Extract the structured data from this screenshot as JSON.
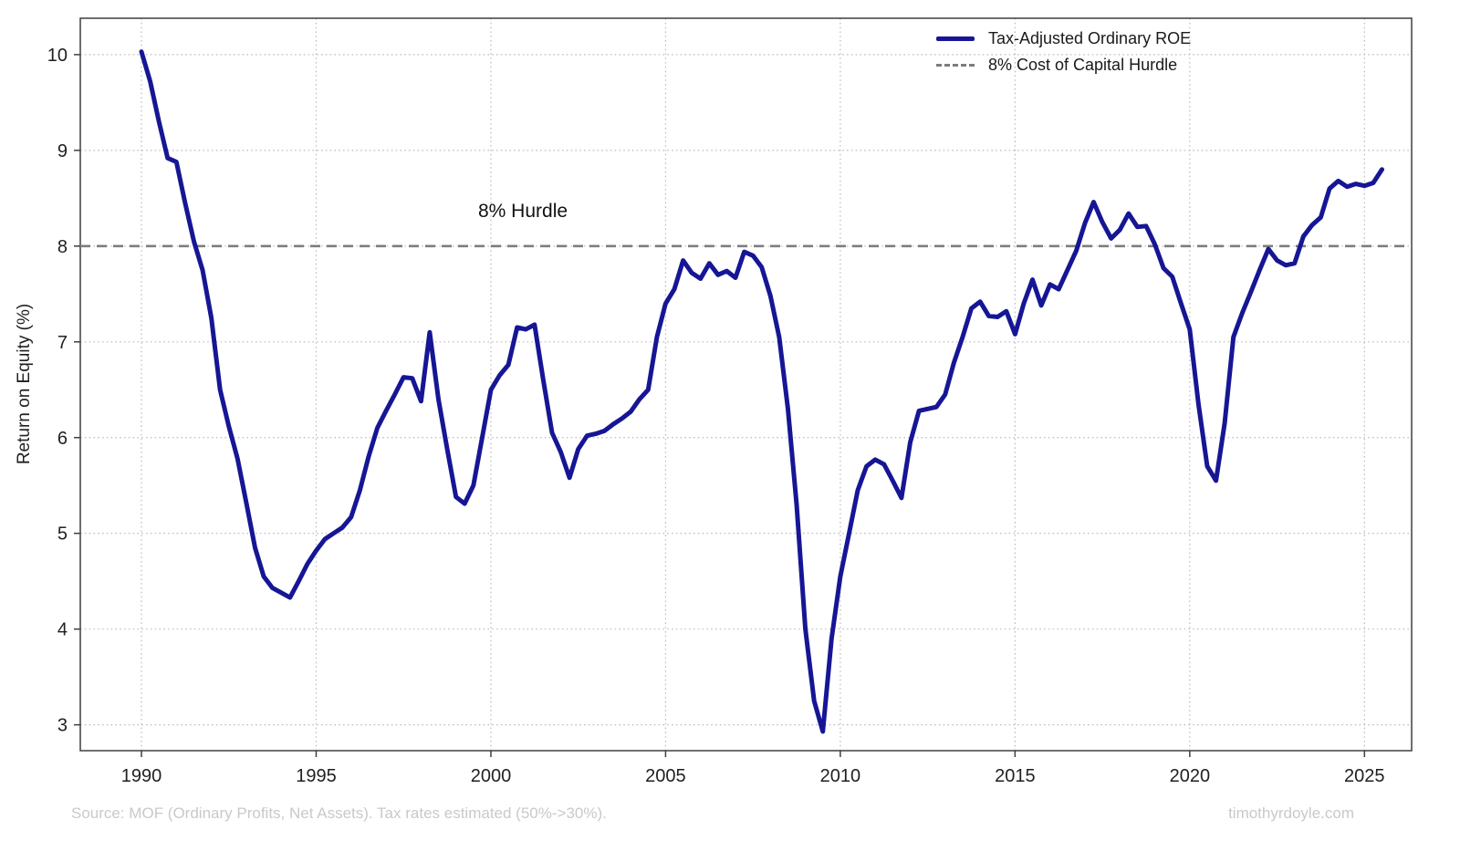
{
  "chart": {
    "y_axis_label": "Return on Equity (%)",
    "annotation": "8% Hurdle",
    "legend_roe_label": "Tax-Adjusted Ordinary ROE",
    "legend_hurdle_label": "8% Cost of Capital Hurdle",
    "footer_left": "Source: MOF (Ordinary Profits, Net Assets). Tax rates estimated (50%->30%).",
    "footer_right": "timothyrdoyle.com",
    "roe_color": "#161695",
    "hurdle_color": "#7d7d7d",
    "grid_color": "#bcbcbc",
    "spine_color": "#3f3f3f",
    "tick_text_color": "#1f1f1f"
  },
  "chart_data": {
    "type": "line",
    "title": "",
    "xlabel": "",
    "ylabel": "Return on Equity (%)",
    "grid": true,
    "legend_position": "upper right",
    "x_ticks": [
      1990,
      1995,
      2000,
      2005,
      2010,
      2015,
      2020,
      2025
    ],
    "y_ticks": [
      3,
      4,
      5,
      6,
      7,
      8,
      9,
      10
    ],
    "xlim": [
      1988.25,
      2026.35
    ],
    "ylim": [
      2.73,
      10.38
    ],
    "hurdle": {
      "label": "8% Cost of Capital Hurdle",
      "value": 8
    },
    "x_start": 1990.0,
    "x_step": 0.25,
    "series": [
      {
        "name": "Tax-Adjusted Ordinary ROE",
        "values": [
          10.03,
          9.72,
          9.3,
          8.92,
          8.88,
          8.45,
          8.05,
          7.75,
          7.25,
          6.5,
          6.12,
          5.78,
          5.32,
          4.85,
          4.55,
          4.43,
          4.38,
          4.33,
          4.5,
          4.68,
          4.82,
          4.94,
          5.0,
          5.06,
          5.17,
          5.45,
          5.8,
          6.1,
          6.28,
          6.45,
          6.63,
          6.62,
          6.38,
          7.1,
          6.4,
          5.88,
          5.38,
          5.31,
          5.5,
          6.0,
          6.5,
          6.65,
          6.76,
          7.15,
          7.13,
          7.18,
          6.6,
          6.05,
          5.85,
          5.58,
          5.88,
          6.02,
          6.04,
          6.07,
          6.14,
          6.2,
          6.27,
          6.4,
          6.5,
          7.05,
          7.4,
          7.55,
          7.85,
          7.72,
          7.66,
          7.82,
          7.7,
          7.74,
          7.67,
          7.94,
          7.9,
          7.78,
          7.48,
          7.05,
          6.3,
          5.3,
          4.0,
          3.25,
          2.93,
          3.9,
          4.55,
          5.0,
          5.45,
          5.7,
          5.77,
          5.72,
          5.55,
          5.37,
          5.95,
          6.28,
          6.3,
          6.32,
          6.45,
          6.78,
          7.05,
          7.35,
          7.42,
          7.27,
          7.26,
          7.32,
          7.08,
          7.4,
          7.65,
          7.38,
          7.6,
          7.55,
          7.75,
          7.95,
          8.24,
          8.46,
          8.25,
          8.08,
          8.17,
          8.34,
          8.2,
          8.21,
          8.02,
          7.77,
          7.68,
          7.4,
          7.13,
          6.35,
          5.7,
          5.55,
          6.15,
          7.05,
          7.3,
          7.52,
          7.75,
          7.97,
          7.85,
          7.8,
          7.82,
          8.1,
          8.22,
          8.3,
          8.6,
          8.68,
          8.62,
          8.65,
          8.63,
          8.66,
          8.8
        ]
      }
    ]
  }
}
